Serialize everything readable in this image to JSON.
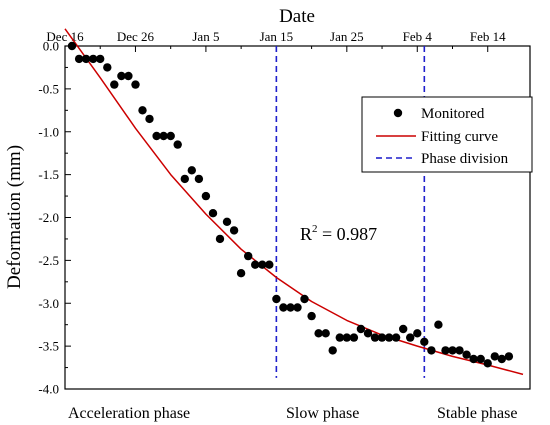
{
  "chart_data": {
    "type": "scatter",
    "xlabel": "Date",
    "ylabel": "Deformation (mm)",
    "x_ticks": [
      "Dec 16",
      "Dec 26",
      "Jan 5",
      "Jan 15",
      "Jan 25",
      "Feb 4",
      "Feb 14"
    ],
    "x_tick_days": [
      0,
      10,
      20,
      30,
      40,
      50,
      60
    ],
    "xlim_days_from_dec16": [
      0,
      66
    ],
    "ylim": [
      -4.0,
      0.0
    ],
    "y_ticks": [
      "0.0",
      "-0.5",
      "-1.0",
      "-1.5",
      "-2.0",
      "-2.5",
      "-3.0",
      "-3.5",
      "-4.0"
    ],
    "y_tick_values": [
      0,
      -0.5,
      -1.0,
      -1.5,
      -2.0,
      -2.5,
      -3.0,
      -3.5,
      -4.0
    ],
    "legend_position": "top-right",
    "colors": {
      "monitored": "#000000",
      "fitting": "#cc0000",
      "phase_division": "#1f1fcc"
    },
    "series": [
      {
        "name": "Monitored",
        "x": [
          1,
          2,
          3,
          4,
          5,
          6,
          7,
          8,
          9,
          10,
          11,
          12,
          13,
          14,
          15,
          16,
          17,
          18,
          19,
          20,
          21,
          22,
          23,
          24,
          25,
          26,
          27,
          28,
          29,
          30,
          31,
          32,
          33,
          34,
          35,
          36,
          37,
          38,
          39,
          40,
          41,
          42,
          43,
          44,
          45,
          46,
          47,
          48,
          49,
          50,
          51,
          52,
          53,
          54,
          55,
          56,
          57,
          58,
          59,
          60,
          61,
          62,
          63
        ],
        "y": [
          0.0,
          -0.15,
          -0.15,
          -0.15,
          -0.15,
          -0.25,
          -0.45,
          -0.35,
          -0.35,
          -0.45,
          -0.75,
          -0.85,
          -1.05,
          -1.05,
          -1.05,
          -1.15,
          -1.55,
          -1.45,
          -1.55,
          -1.75,
          -1.95,
          -2.25,
          -2.05,
          -2.15,
          -2.65,
          -2.45,
          -2.55,
          -2.55,
          -2.55,
          -2.95,
          -3.05,
          -3.05,
          -3.05,
          -2.95,
          -3.15,
          -3.35,
          -3.35,
          -3.55,
          -3.4,
          -3.4,
          -3.4,
          -3.3,
          -3.35,
          -3.4,
          -3.4,
          -3.4,
          -3.4,
          -3.3,
          -3.4,
          -3.35,
          -3.45,
          -3.55,
          -3.25,
          -3.55,
          -3.55,
          -3.55,
          -3.6,
          -3.65,
          -3.65,
          -3.7,
          -3.62,
          -3.65,
          -3.62
        ]
      },
      {
        "name": "Fitting curve",
        "x": [
          0,
          5,
          10,
          15,
          20,
          25,
          30,
          35,
          40,
          45,
          50,
          55,
          60,
          65
        ],
        "y": [
          0.2,
          -0.37,
          -0.96,
          -1.5,
          -1.96,
          -2.37,
          -2.7,
          -2.98,
          -3.2,
          -3.37,
          -3.5,
          -3.62,
          -3.72,
          -3.83
        ]
      }
    ],
    "phase_divisions_days": [
      30,
      51
    ],
    "phase_labels": [
      "Acceleration phase",
      "Slow phase",
      "Stable phase"
    ],
    "annotation": {
      "prefix": "R",
      "superscript": "2",
      "suffix": " = 0.987"
    }
  }
}
